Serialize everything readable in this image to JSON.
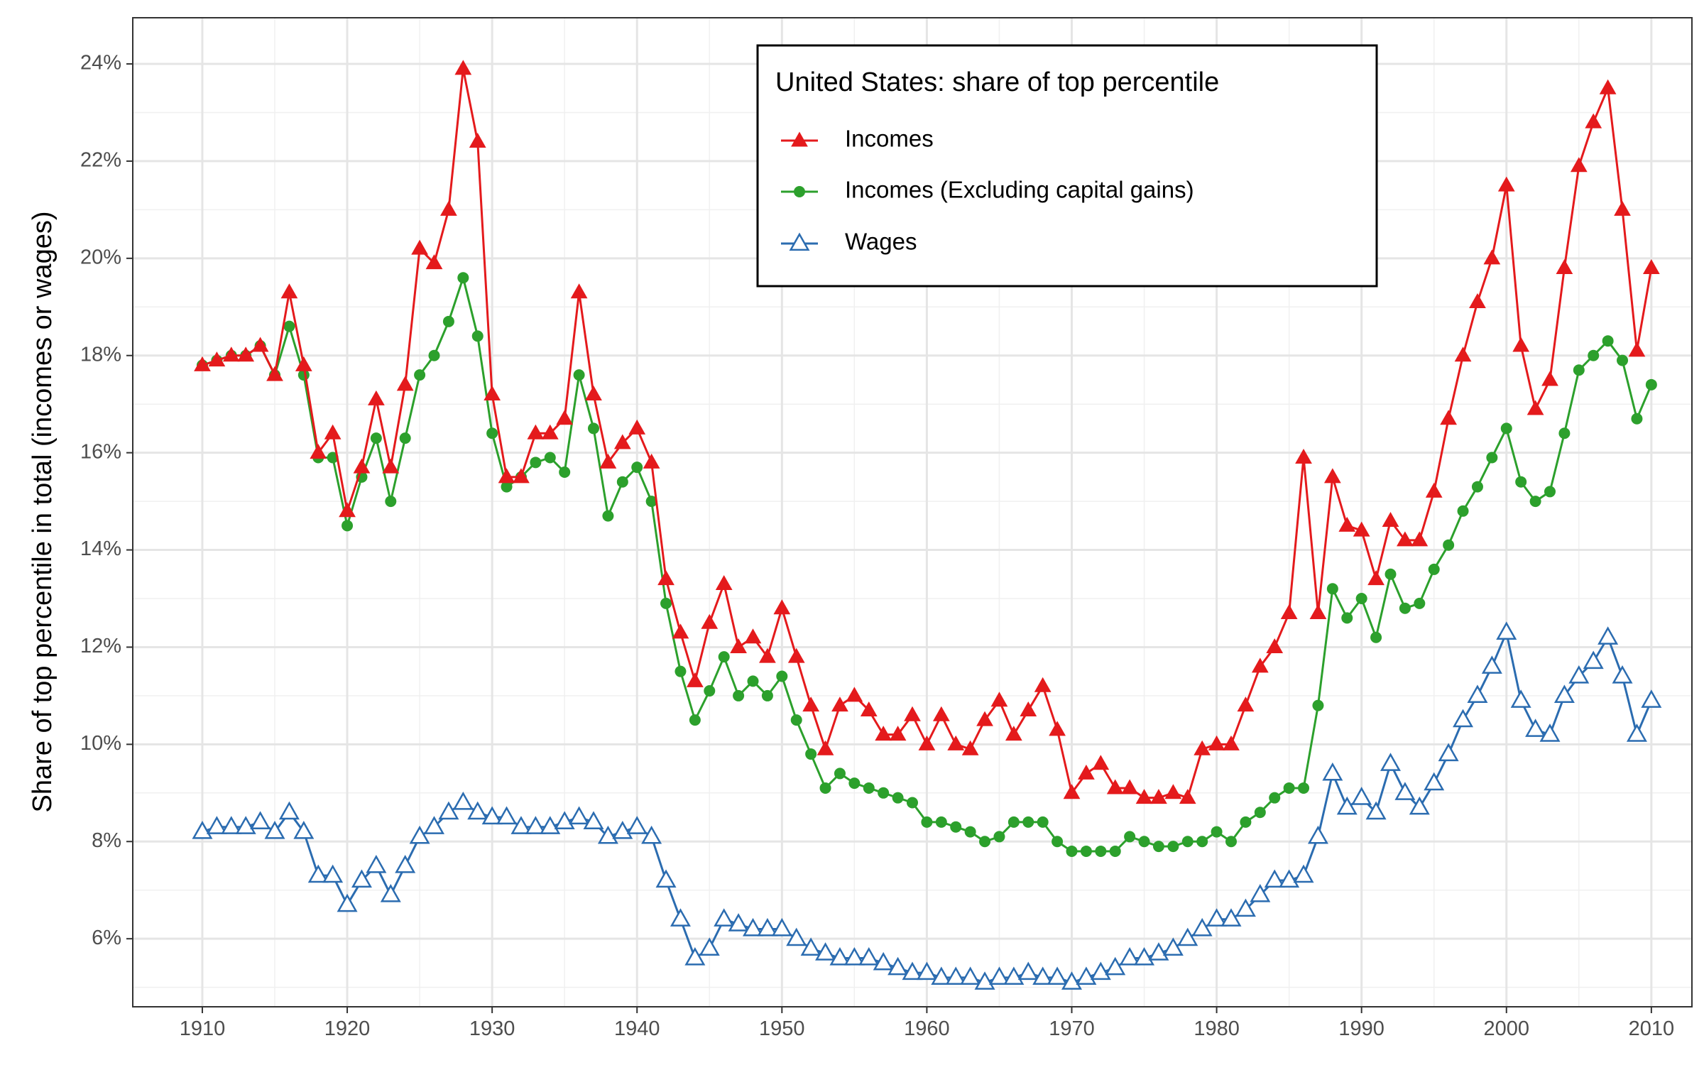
{
  "chart_data": {
    "type": "line",
    "title": "",
    "xlabel": "",
    "ylabel": "Share of top percentile in total (incomes or wages)",
    "xlim": [
      1905.2,
      2012.8
    ],
    "ylim": [
      4.6,
      24.95
    ],
    "x_ticks": [
      1910,
      1920,
      1930,
      1940,
      1950,
      1960,
      1970,
      1980,
      1990,
      2000,
      2010
    ],
    "y_ticks": [
      6,
      8,
      10,
      12,
      14,
      16,
      18,
      20,
      22,
      24
    ],
    "y_tick_labels": [
      "6%",
      "8%",
      "10%",
      "12%",
      "14%",
      "16%",
      "18%",
      "20%",
      "22%",
      "24%"
    ],
    "grid": true,
    "legend": {
      "title": "United States: share of top percentile",
      "position": "top-center"
    },
    "x": [
      1910,
      1911,
      1912,
      1913,
      1914,
      1915,
      1916,
      1917,
      1918,
      1919,
      1920,
      1921,
      1922,
      1923,
      1924,
      1925,
      1926,
      1927,
      1928,
      1929,
      1930,
      1931,
      1932,
      1933,
      1934,
      1935,
      1936,
      1937,
      1938,
      1939,
      1940,
      1941,
      1942,
      1943,
      1944,
      1945,
      1946,
      1947,
      1948,
      1949,
      1950,
      1951,
      1952,
      1953,
      1954,
      1955,
      1956,
      1957,
      1958,
      1959,
      1960,
      1961,
      1962,
      1963,
      1964,
      1965,
      1966,
      1967,
      1968,
      1969,
      1970,
      1971,
      1972,
      1973,
      1974,
      1975,
      1976,
      1977,
      1978,
      1979,
      1980,
      1981,
      1982,
      1983,
      1984,
      1985,
      1986,
      1987,
      1988,
      1989,
      1990,
      1991,
      1992,
      1993,
      1994,
      1995,
      1996,
      1997,
      1998,
      1999,
      2000,
      2001,
      2002,
      2003,
      2004,
      2005,
      2006,
      2007,
      2008,
      2009,
      2010
    ],
    "series": [
      {
        "name": "Incomes",
        "color": "#e41a1c",
        "marker": "filled-triangle",
        "values": [
          17.8,
          17.9,
          18.0,
          18.0,
          18.2,
          17.6,
          19.3,
          17.8,
          16.0,
          16.4,
          14.8,
          15.7,
          17.1,
          15.7,
          17.4,
          20.2,
          19.9,
          21.0,
          23.9,
          22.4,
          17.2,
          15.5,
          15.5,
          16.4,
          16.4,
          16.7,
          19.3,
          17.2,
          15.8,
          16.2,
          16.5,
          15.8,
          13.4,
          12.3,
          11.3,
          12.5,
          13.3,
          12.0,
          12.2,
          11.8,
          12.8,
          11.8,
          10.8,
          9.9,
          10.8,
          11.0,
          10.7,
          10.2,
          10.2,
          10.6,
          10.0,
          10.6,
          10.0,
          9.9,
          10.5,
          10.9,
          10.2,
          10.7,
          11.2,
          10.3,
          9.0,
          9.4,
          9.6,
          9.1,
          9.1,
          8.9,
          8.9,
          9.0,
          8.9,
          9.9,
          10.0,
          10.0,
          10.8,
          11.6,
          12.0,
          12.7,
          15.9,
          12.7,
          15.5,
          14.5,
          14.4,
          13.4,
          14.6,
          14.2,
          14.2,
          15.2,
          16.7,
          18.0,
          19.1,
          20.0,
          21.5,
          18.2,
          16.9,
          17.5,
          19.8,
          21.9,
          22.8,
          23.5,
          21.0,
          18.1,
          19.8
        ]
      },
      {
        "name": "Incomes (Excluding capital gains)",
        "color": "#2ca02c",
        "marker": "filled-circle",
        "values": [
          17.8,
          17.9,
          18.0,
          18.0,
          18.2,
          17.6,
          18.6,
          17.6,
          15.9,
          15.9,
          14.5,
          15.5,
          16.3,
          15.0,
          16.3,
          17.6,
          18.0,
          18.7,
          19.6,
          18.4,
          16.4,
          15.3,
          15.5,
          15.8,
          15.9,
          15.6,
          17.6,
          16.5,
          14.7,
          15.4,
          15.7,
          15.0,
          12.9,
          11.5,
          10.5,
          11.1,
          11.8,
          11.0,
          11.3,
          11.0,
          11.4,
          10.5,
          9.8,
          9.1,
          9.4,
          9.2,
          9.1,
          9.0,
          8.9,
          8.8,
          8.4,
          8.4,
          8.3,
          8.2,
          8.0,
          8.1,
          8.4,
          8.4,
          8.4,
          8.0,
          7.8,
          7.8,
          7.8,
          7.8,
          8.1,
          8.0,
          7.9,
          7.9,
          8.0,
          8.0,
          8.2,
          8.0,
          8.4,
          8.6,
          8.9,
          9.1,
          9.1,
          10.8,
          13.2,
          12.6,
          13.0,
          12.2,
          13.5,
          12.8,
          12.9,
          13.6,
          14.1,
          14.8,
          15.3,
          15.9,
          16.5,
          15.4,
          15.0,
          15.2,
          16.4,
          17.7,
          18.0,
          18.3,
          17.9,
          16.7,
          17.4
        ]
      },
      {
        "name": "Wages",
        "color": "#2b6cb0",
        "marker": "open-triangle",
        "values": [
          8.2,
          8.3,
          8.3,
          8.3,
          8.4,
          8.2,
          8.6,
          8.2,
          7.3,
          7.3,
          6.7,
          7.2,
          7.5,
          6.9,
          7.5,
          8.1,
          8.3,
          8.6,
          8.8,
          8.6,
          8.5,
          8.5,
          8.3,
          8.3,
          8.3,
          8.4,
          8.5,
          8.4,
          8.1,
          8.2,
          8.3,
          8.1,
          7.2,
          6.4,
          5.6,
          5.8,
          6.4,
          6.3,
          6.2,
          6.2,
          6.2,
          6.0,
          5.8,
          5.7,
          5.6,
          5.6,
          5.6,
          5.5,
          5.4,
          5.3,
          5.3,
          5.2,
          5.2,
          5.2,
          5.1,
          5.2,
          5.2,
          5.3,
          5.2,
          5.2,
          5.1,
          5.2,
          5.3,
          5.4,
          5.6,
          5.6,
          5.7,
          5.8,
          6.0,
          6.2,
          6.4,
          6.4,
          6.6,
          6.9,
          7.2,
          7.2,
          7.3,
          8.1,
          9.4,
          8.7,
          8.9,
          8.6,
          9.6,
          9.0,
          8.7,
          9.2,
          9.8,
          10.5,
          11.0,
          11.6,
          12.3,
          10.9,
          10.3,
          10.2,
          11.0,
          11.4,
          11.7,
          12.2,
          11.4,
          10.2,
          10.9
        ]
      }
    ]
  }
}
